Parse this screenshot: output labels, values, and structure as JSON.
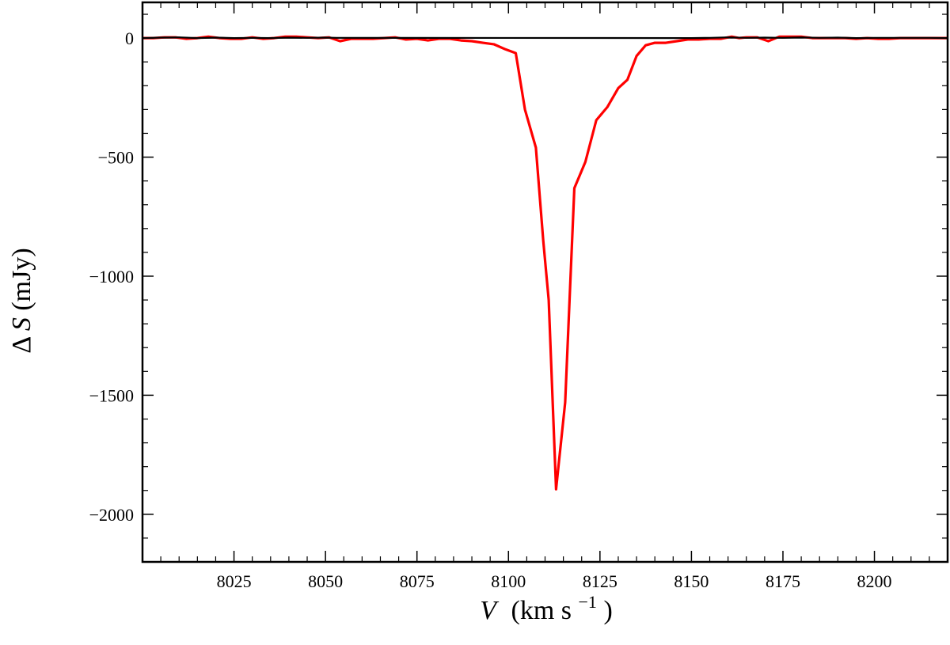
{
  "chart_data": {
    "type": "line",
    "xlabel": {
      "symbol": "V",
      "unit_prefix": "(km s",
      "unit_exp": "−1",
      "unit_suffix": ")"
    },
    "ylabel": {
      "prefix": "Δ",
      "symbol": "S",
      "unit": " (mJy)"
    },
    "xlim": [
      8000,
      8220
    ],
    "ylim": [
      -2200,
      150
    ],
    "xticks": [
      8025,
      8050,
      8075,
      8100,
      8125,
      8150,
      8175,
      8200
    ],
    "xtick_labels": [
      "8025",
      "8050",
      "8075",
      "8100",
      "8125",
      "8150",
      "8175",
      "8200"
    ],
    "yticks": [
      0,
      -500,
      -1000,
      -1500,
      -2000
    ],
    "ytick_labels": [
      "0",
      "−500",
      "−1000",
      "−1500",
      "−2000"
    ],
    "grid": false,
    "reference_line": {
      "y": 0,
      "color": "#000000"
    },
    "series": [
      {
        "color": "#ff0000",
        "x": [
          8000,
          8003,
          8006,
          8009,
          8012,
          8015,
          8018,
          8021,
          8024,
          8027,
          8030,
          8033,
          8036,
          8039,
          8042,
          8045,
          8048,
          8051,
          8054,
          8057,
          8060,
          8063,
          8066,
          8069,
          8072,
          8075,
          8078,
          8081,
          8084,
          8087,
          8090,
          8093,
          8096,
          8099,
          8102,
          8104.5,
          8107.5,
          8109.5,
          8111,
          8113,
          8115.5,
          8118,
          8121,
          8124,
          8127,
          8130,
          8132.5,
          8135,
          8137.5,
          8140,
          8143,
          8146,
          8149,
          8152,
          8155,
          8158,
          8161,
          8163,
          8165,
          8168,
          8171,
          8174,
          8177,
          8180,
          8183,
          8186,
          8189,
          8192,
          8195,
          8198,
          8201,
          8204,
          8207,
          8210,
          8213,
          8216,
          8220
        ],
        "y": [
          0,
          0,
          3,
          3,
          -3,
          0,
          6,
          0,
          -3,
          -3,
          3,
          -3,
          0,
          6,
          6,
          3,
          0,
          3,
          -13,
          -3,
          -3,
          -3,
          0,
          3,
          -6,
          -3,
          -10,
          -3,
          -3,
          -10,
          -13,
          -20,
          -26,
          -46,
          -63,
          -300,
          -460,
          -850,
          -1100,
          -1895,
          -1530,
          -630,
          -520,
          -345,
          -290,
          -210,
          -175,
          -75,
          -30,
          -20,
          -20,
          -13,
          -6,
          -6,
          -3,
          -3,
          6,
          0,
          3,
          3,
          -13,
          6,
          6,
          6,
          0,
          0,
          0,
          0,
          -3,
          0,
          -3,
          -3,
          0,
          0,
          0,
          0,
          0
        ]
      },
      {
        "color": "#000000",
        "x": [
          8000,
          8005,
          8010,
          8015,
          8020,
          8025,
          8030,
          8035,
          8040,
          8045,
          8050,
          8053,
          8150,
          8155,
          8160,
          8165,
          8170,
          8175,
          8180,
          8185,
          8190,
          8195,
          8200,
          8205,
          8210,
          8215,
          8220
        ],
        "y": [
          0,
          2,
          3,
          0,
          2,
          0,
          1,
          0,
          2,
          1,
          2,
          1,
          0,
          1,
          3,
          1,
          2,
          1,
          3,
          1,
          2,
          0,
          1,
          1,
          1,
          1,
          0
        ]
      }
    ]
  }
}
